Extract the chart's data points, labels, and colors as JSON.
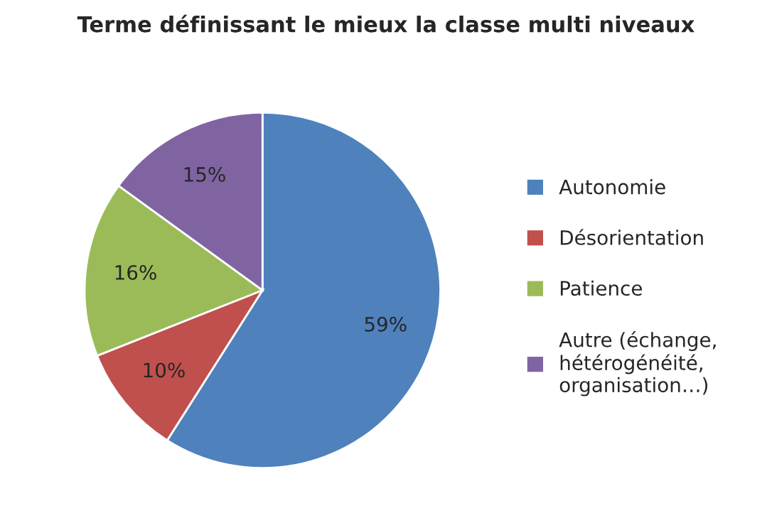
{
  "chart_data": {
    "type": "pie",
    "title": "Terme définissant le mieux la classe multi niveaux",
    "categories": [
      "Autonomie",
      "Désorientation",
      "Patience",
      "Autre (échange, hétérogénéité, organisation…)"
    ],
    "values": [
      59,
      10,
      16,
      15
    ],
    "value_labels": [
      "59%",
      "10%",
      "16%",
      "15%"
    ],
    "colors": [
      "#4f81bd",
      "#c0504d",
      "#9bbb59",
      "#8064a2"
    ],
    "legend": "right"
  }
}
